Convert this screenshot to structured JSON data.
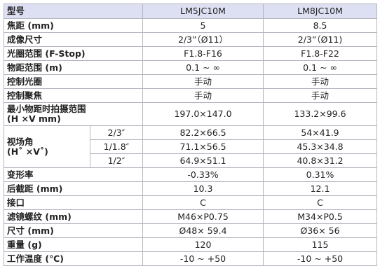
{
  "table": {
    "header": [
      "型号",
      "LM5JC10M",
      "LM8JC10M"
    ],
    "rows": [
      [
        "焦距 (mm)",
        "5",
        "8.5"
      ],
      [
        "成像尺寸",
        "2/3”（Ø11）",
        "2/3”（Ø11)"
      ],
      [
        "光圈范围 (F-Stop)",
        "F1.8-F16",
        "F1.8-F22"
      ],
      [
        "物距范围 (m)",
        "0.1 ~ ∞",
        "0.1 ~ ∞"
      ],
      [
        "控制光圈",
        "手动",
        "手动"
      ],
      [
        "控制聚焦",
        "手动",
        "手动"
      ],
      [
        [
          "最小物距时拍摄范围",
          "(H ×V mm)"
        ],
        "197.0×147.0",
        "133.2×99.6"
      ],
      {
        "label": [
          "视场角",
          "(H˚ ×V˚)"
        ],
        "sub": [
          [
            "2/3″",
            "82.2×66.5",
            "54×41.9"
          ],
          [
            "1/1.8″",
            "71.1×56.5",
            "45.3×34.8"
          ],
          [
            "1/2″",
            "64.9×51.1",
            "40.8×31.2"
          ]
        ]
      },
      [
        "变形率",
        "-0.33%",
        "0.31%"
      ],
      [
        "后截距 (mm)",
        "10.3",
        "12.1"
      ],
      [
        "接口",
        "C",
        "C"
      ],
      [
        "滤镜螺纹 (mm)",
        "M46×P0.75",
        "M34×P0.5"
      ],
      [
        "尺寸 (mm)",
        "Ø48× 59.4",
        "Ø36× 56"
      ],
      [
        "重量 (g)",
        "120",
        "115"
      ],
      [
        "工作温度 (℃)",
        "-10 ~ +50",
        "-10 ~ +50"
      ]
    ]
  }
}
